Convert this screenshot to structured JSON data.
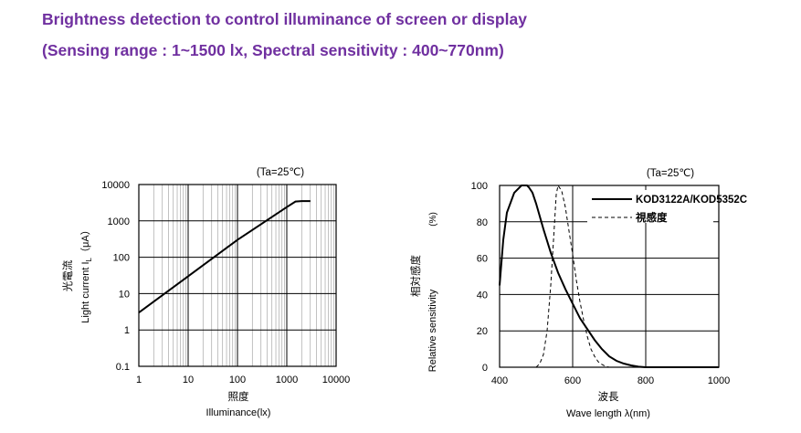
{
  "header": {
    "line1": "Brightness detection to control illuminance of screen or display",
    "line2": "(Sensing range : 1~1500 lx, Spectral sensitivity : 400~770nm)"
  },
  "colors": {
    "header_text": "#7030a0",
    "axes": "#000000",
    "grid": "#000000",
    "minor_grid": "#999999"
  },
  "chart_data": [
    {
      "type": "line",
      "annotation": "(Ta=25℃)",
      "xscale": "log",
      "yscale": "log",
      "xlim": [
        1,
        10000
      ],
      "ylim": [
        0.1,
        10000
      ],
      "xticks": [
        "1",
        "10",
        "100",
        "1000",
        "10000"
      ],
      "yticks": [
        "0.1",
        "1",
        "10",
        "100",
        "1000",
        "10000"
      ],
      "xlabel_jp": "照度",
      "xlabel": "Illuminance(lx)",
      "ylabel_jp": "光電流",
      "ylabel": "Light current I",
      "ylabel_sub": "L",
      "ylabel_unit": "（μA）",
      "grid": true,
      "series": [
        {
          "x": [
            1,
            10,
            100,
            1000,
            1500,
            2000,
            3000
          ],
          "y": [
            3,
            30,
            300,
            2400,
            3400,
            3500,
            3500
          ]
        }
      ]
    },
    {
      "type": "line",
      "annotation": "(Ta=25℃)",
      "xlim": [
        400,
        1000
      ],
      "ylim": [
        0,
        100
      ],
      "xticks": [
        "400",
        "600",
        "800",
        "1000"
      ],
      "yticks": [
        "0",
        "20",
        "40",
        "60",
        "80",
        "100"
      ],
      "xlabel_jp": "波長",
      "xlabel": "Wave length λ(nm)",
      "ylabel_jp": "相対感度",
      "ylabel": "Relative sensitivity",
      "ylabel_unit": "(%)",
      "grid": true,
      "legend_position": "top-right",
      "series": [
        {
          "name": "KOD3122A/KOD5352C",
          "style": "solid",
          "x": [
            400,
            410,
            420,
            440,
            460,
            475,
            480,
            490,
            500,
            520,
            540,
            560,
            580,
            600,
            620,
            640,
            660,
            680,
            700,
            720,
            740,
            760,
            780,
            800,
            850,
            900,
            950,
            1000
          ],
          "y": [
            45,
            70,
            85,
            96,
            100,
            100,
            99,
            96,
            90,
            76,
            63,
            52,
            43,
            35,
            27,
            21,
            15,
            10,
            6,
            3.5,
            2,
            1,
            0.3,
            0,
            0,
            0,
            0,
            0
          ]
        },
        {
          "name": "視感度",
          "style": "dashed",
          "x": [
            500,
            510,
            520,
            530,
            540,
            550,
            555,
            560,
            570,
            580,
            590,
            600,
            610,
            620,
            630,
            640,
            650,
            660,
            670,
            680,
            690,
            700
          ],
          "y": [
            0,
            2,
            7,
            20,
            45,
            78,
            95,
            100,
            97,
            88,
            75,
            62,
            48,
            36,
            26,
            17,
            10,
            6,
            3,
            1.5,
            0.5,
            0
          ]
        }
      ]
    }
  ]
}
